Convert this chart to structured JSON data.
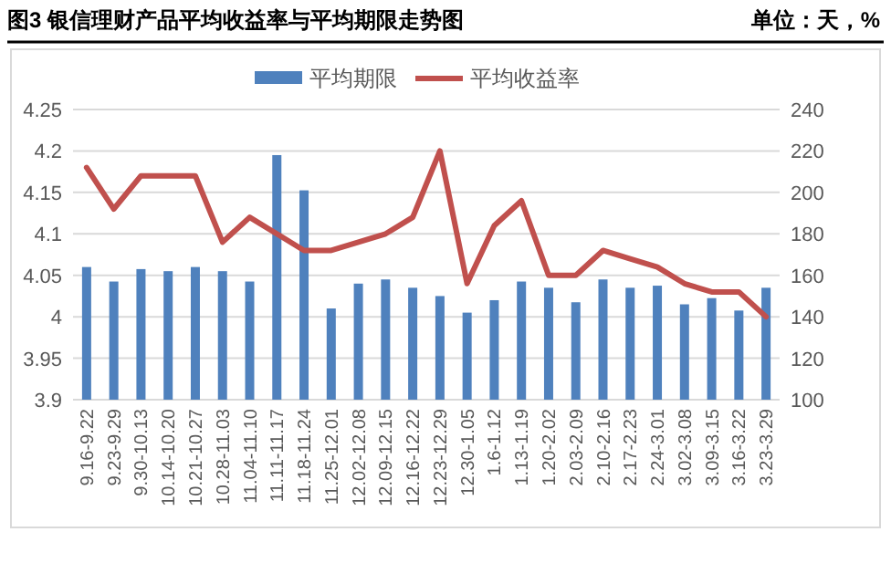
{
  "chart_data": {
    "type": "bar",
    "title": "图3 银信理财产品平均收益率与平均期限走势图",
    "annotations": [
      "单位：天，%"
    ],
    "categories": [
      "9.16-9.22",
      "9.23-9.29",
      "9.30-10.13",
      "10.14-10.20",
      "10.21-10.27",
      "10.28-11.03",
      "11.04-11.10",
      "11.11-11.17",
      "11.18-11.24",
      "11.25-12.01",
      "12.02-12.08",
      "12.09-12.15",
      "12.16-12.22",
      "12.23-12.29",
      "12.30-1.05",
      "1.6-1.12",
      "1.13-1.19",
      "1.20-2.02",
      "2.03-2.09",
      "2.10-2.16",
      "2.17-2.23",
      "2.24-3.01",
      "3.02-3.08",
      "3.09-3.15",
      "3.16-3.22",
      "3.23-3.29"
    ],
    "series": [
      {
        "name": "平均期限",
        "axis": "y2",
        "color": "#4f81bd",
        "values": [
          164,
          157,
          163,
          162,
          164,
          162,
          157,
          218,
          201,
          144,
          156,
          158,
          154,
          150,
          142,
          148,
          157,
          154,
          147,
          158,
          154,
          155,
          146,
          149,
          143,
          154
        ]
      },
      {
        "name": "平均收益率",
        "type": "line",
        "color": "#c0504d",
        "values": [
          4.18,
          4.13,
          4.17,
          4.17,
          4.17,
          4.09,
          4.12,
          4.1,
          4.08,
          4.08,
          4.09,
          4.1,
          4.12,
          4.2,
          4.04,
          4.11,
          4.14,
          4.05,
          4.05,
          4.08,
          4.07,
          4.06,
          4.04,
          4.03,
          4.03,
          4.0
        ]
      }
    ],
    "ylim": [
      3.9,
      4.25
    ],
    "yticks": [
      3.9,
      3.95,
      4,
      4.05,
      4.1,
      4.15,
      4.2,
      4.25
    ],
    "y2lim": [
      100,
      240
    ],
    "y2ticks": [
      100,
      120,
      140,
      160,
      180,
      200,
      220,
      240
    ],
    "grid": "y",
    "legend": "top"
  }
}
